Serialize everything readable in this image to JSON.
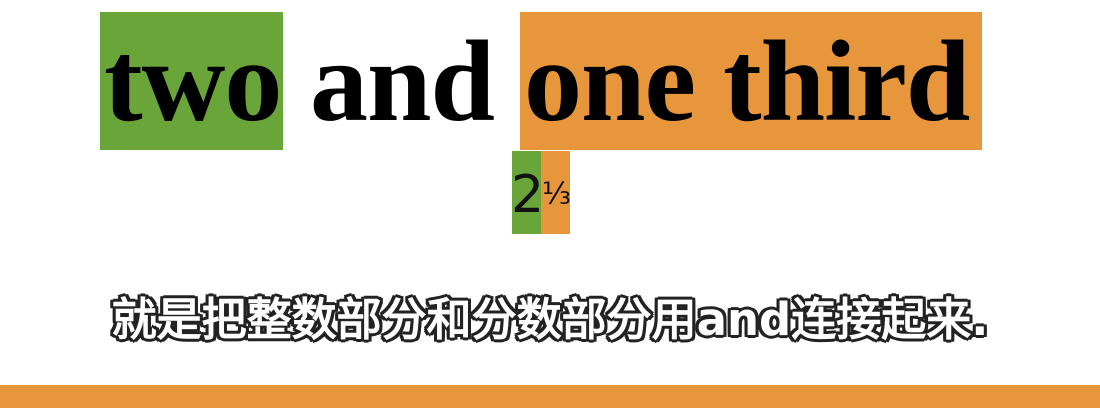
{
  "colors": {
    "whole_highlight": "#6aa53a",
    "fraction_highlight": "#e8963b",
    "bottom_bar": "#e8963b"
  },
  "phrase": {
    "whole": "two",
    "connector": "and",
    "fraction": "one third"
  },
  "mixed_number": {
    "whole": "2",
    "fraction": "⅓"
  },
  "subtitle": "就是把整数部分和分数部分用and连接起来."
}
